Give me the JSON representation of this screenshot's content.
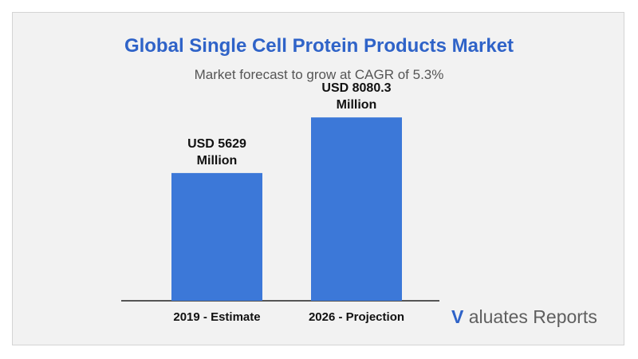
{
  "chart_data": {
    "type": "bar",
    "title": "Global Single Cell Protein Products Market",
    "subtitle": "Market forecast to grow at CAGR of 5.3%",
    "categories": [
      "2019 - Estimate",
      "2026 - Projection"
    ],
    "values": [
      5629,
      8080.3
    ],
    "data_labels": [
      [
        "USD 5629",
        "Million"
      ],
      [
        "USD 8080.3",
        "Million"
      ]
    ],
    "xlabel": "",
    "ylabel": "",
    "ylim": [
      0,
      9950
    ],
    "grid": false,
    "bar_color": "#3c78d8"
  },
  "brand": {
    "v": "V",
    "rest": " aluates Reports",
    "accent_color": "#2f63c8"
  }
}
